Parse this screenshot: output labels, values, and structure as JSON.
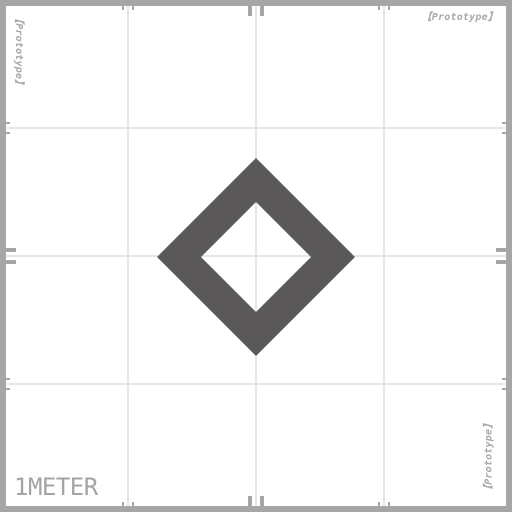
{
  "texture": {
    "watermark_text": "【Prototype】",
    "scale_label": "1METER",
    "colors": {
      "background": "#ffffff",
      "grid_line": "#e6e6e6",
      "border": "#a6a6a6",
      "shape": "#5a5858",
      "label": "#a8a8a8"
    }
  }
}
